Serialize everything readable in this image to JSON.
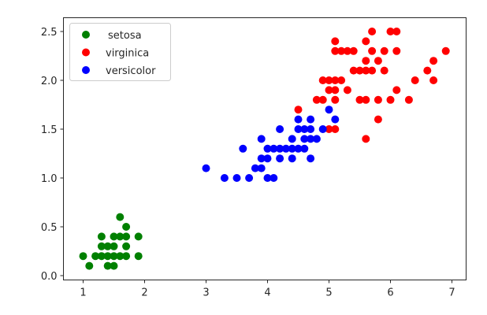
{
  "chart_data": {
    "type": "scatter",
    "title": "",
    "xlabel": "",
    "ylabel": "",
    "xlim": [
      0.7,
      7.25
    ],
    "ylim": [
      -0.04,
      2.64
    ],
    "grid": false,
    "legend_position": "upper left",
    "x_ticks": [
      1,
      2,
      3,
      4,
      5,
      6,
      7
    ],
    "x_tick_labels": [
      "1",
      "2",
      "3",
      "4",
      "5",
      "6",
      "7"
    ],
    "y_ticks": [
      0.0,
      0.5,
      1.0,
      1.5,
      2.0,
      2.5
    ],
    "y_tick_labels": [
      "0.0",
      "0.5",
      "1.0",
      "1.5",
      "2.0",
      "2.5"
    ],
    "series": [
      {
        "name": "setosa",
        "color": "#008000",
        "points": [
          [
            1.6,
            0.6
          ],
          [
            1.7,
            0.5
          ],
          [
            1.3,
            0.4
          ],
          [
            1.5,
            0.4
          ],
          [
            1.6,
            0.4
          ],
          [
            1.7,
            0.4
          ],
          [
            1.9,
            0.4
          ],
          [
            1.3,
            0.3
          ],
          [
            1.4,
            0.3
          ],
          [
            1.5,
            0.3
          ],
          [
            1.7,
            0.3
          ],
          [
            1.0,
            0.2
          ],
          [
            1.2,
            0.2
          ],
          [
            1.3,
            0.2
          ],
          [
            1.4,
            0.2
          ],
          [
            1.5,
            0.2
          ],
          [
            1.6,
            0.2
          ],
          [
            1.7,
            0.2
          ],
          [
            1.9,
            0.2
          ],
          [
            1.1,
            0.1
          ],
          [
            1.4,
            0.1
          ],
          [
            1.5,
            0.1
          ]
        ]
      },
      {
        "name": "virginica",
        "color": "#ff0000",
        "points": [
          [
            5.7,
            2.5
          ],
          [
            6.0,
            2.5
          ],
          [
            6.1,
            2.5
          ],
          [
            5.1,
            2.4
          ],
          [
            5.6,
            2.4
          ],
          [
            5.1,
            2.3
          ],
          [
            5.2,
            2.3
          ],
          [
            5.3,
            2.3
          ],
          [
            5.4,
            2.3
          ],
          [
            5.7,
            2.3
          ],
          [
            5.9,
            2.3
          ],
          [
            6.1,
            2.3
          ],
          [
            6.9,
            2.3
          ],
          [
            5.6,
            2.2
          ],
          [
            5.8,
            2.2
          ],
          [
            6.7,
            2.2
          ],
          [
            5.4,
            2.1
          ],
          [
            5.5,
            2.1
          ],
          [
            5.6,
            2.1
          ],
          [
            5.7,
            2.1
          ],
          [
            5.9,
            2.1
          ],
          [
            6.6,
            2.1
          ],
          [
            4.9,
            2.0
          ],
          [
            5.0,
            2.0
          ],
          [
            5.1,
            2.0
          ],
          [
            5.2,
            2.0
          ],
          [
            6.4,
            2.0
          ],
          [
            6.7,
            2.0
          ],
          [
            5.0,
            1.9
          ],
          [
            5.1,
            1.9
          ],
          [
            5.3,
            1.9
          ],
          [
            6.1,
            1.9
          ],
          [
            4.8,
            1.8
          ],
          [
            4.9,
            1.8
          ],
          [
            5.1,
            1.8
          ],
          [
            5.5,
            1.8
          ],
          [
            5.6,
            1.8
          ],
          [
            5.8,
            1.8
          ],
          [
            6.0,
            1.8
          ],
          [
            6.3,
            1.8
          ],
          [
            4.5,
            1.7
          ],
          [
            5.8,
            1.6
          ],
          [
            5.0,
            1.5
          ],
          [
            5.1,
            1.5
          ],
          [
            5.6,
            1.4
          ]
        ]
      },
      {
        "name": "versicolor",
        "color": "#0000ff",
        "points": [
          [
            5.0,
            1.7
          ],
          [
            4.5,
            1.6
          ],
          [
            4.7,
            1.6
          ],
          [
            5.1,
            1.6
          ],
          [
            4.2,
            1.5
          ],
          [
            4.5,
            1.5
          ],
          [
            4.6,
            1.5
          ],
          [
            4.7,
            1.5
          ],
          [
            4.9,
            1.5
          ],
          [
            3.9,
            1.4
          ],
          [
            4.4,
            1.4
          ],
          [
            4.6,
            1.4
          ],
          [
            4.7,
            1.4
          ],
          [
            4.8,
            1.4
          ],
          [
            3.6,
            1.3
          ],
          [
            4.0,
            1.3
          ],
          [
            4.1,
            1.3
          ],
          [
            4.2,
            1.3
          ],
          [
            4.3,
            1.3
          ],
          [
            4.4,
            1.3
          ],
          [
            4.5,
            1.3
          ],
          [
            4.6,
            1.3
          ],
          [
            3.9,
            1.2
          ],
          [
            4.0,
            1.2
          ],
          [
            4.2,
            1.2
          ],
          [
            4.4,
            1.2
          ],
          [
            4.7,
            1.2
          ],
          [
            3.0,
            1.1
          ],
          [
            3.8,
            1.1
          ],
          [
            3.9,
            1.1
          ],
          [
            3.3,
            1.0
          ],
          [
            3.5,
            1.0
          ],
          [
            3.7,
            1.0
          ],
          [
            4.0,
            1.0
          ],
          [
            4.1,
            1.0
          ]
        ]
      }
    ]
  },
  "legend": {
    "items": [
      {
        "label": "setosa",
        "color": "#008000"
      },
      {
        "label": "virginica",
        "color": "#ff0000"
      },
      {
        "label": "versicolor",
        "color": "#0000ff"
      }
    ]
  },
  "style": {
    "axis_color": "#262626",
    "legend_border": "#cccccc",
    "background": "#ffffff"
  }
}
